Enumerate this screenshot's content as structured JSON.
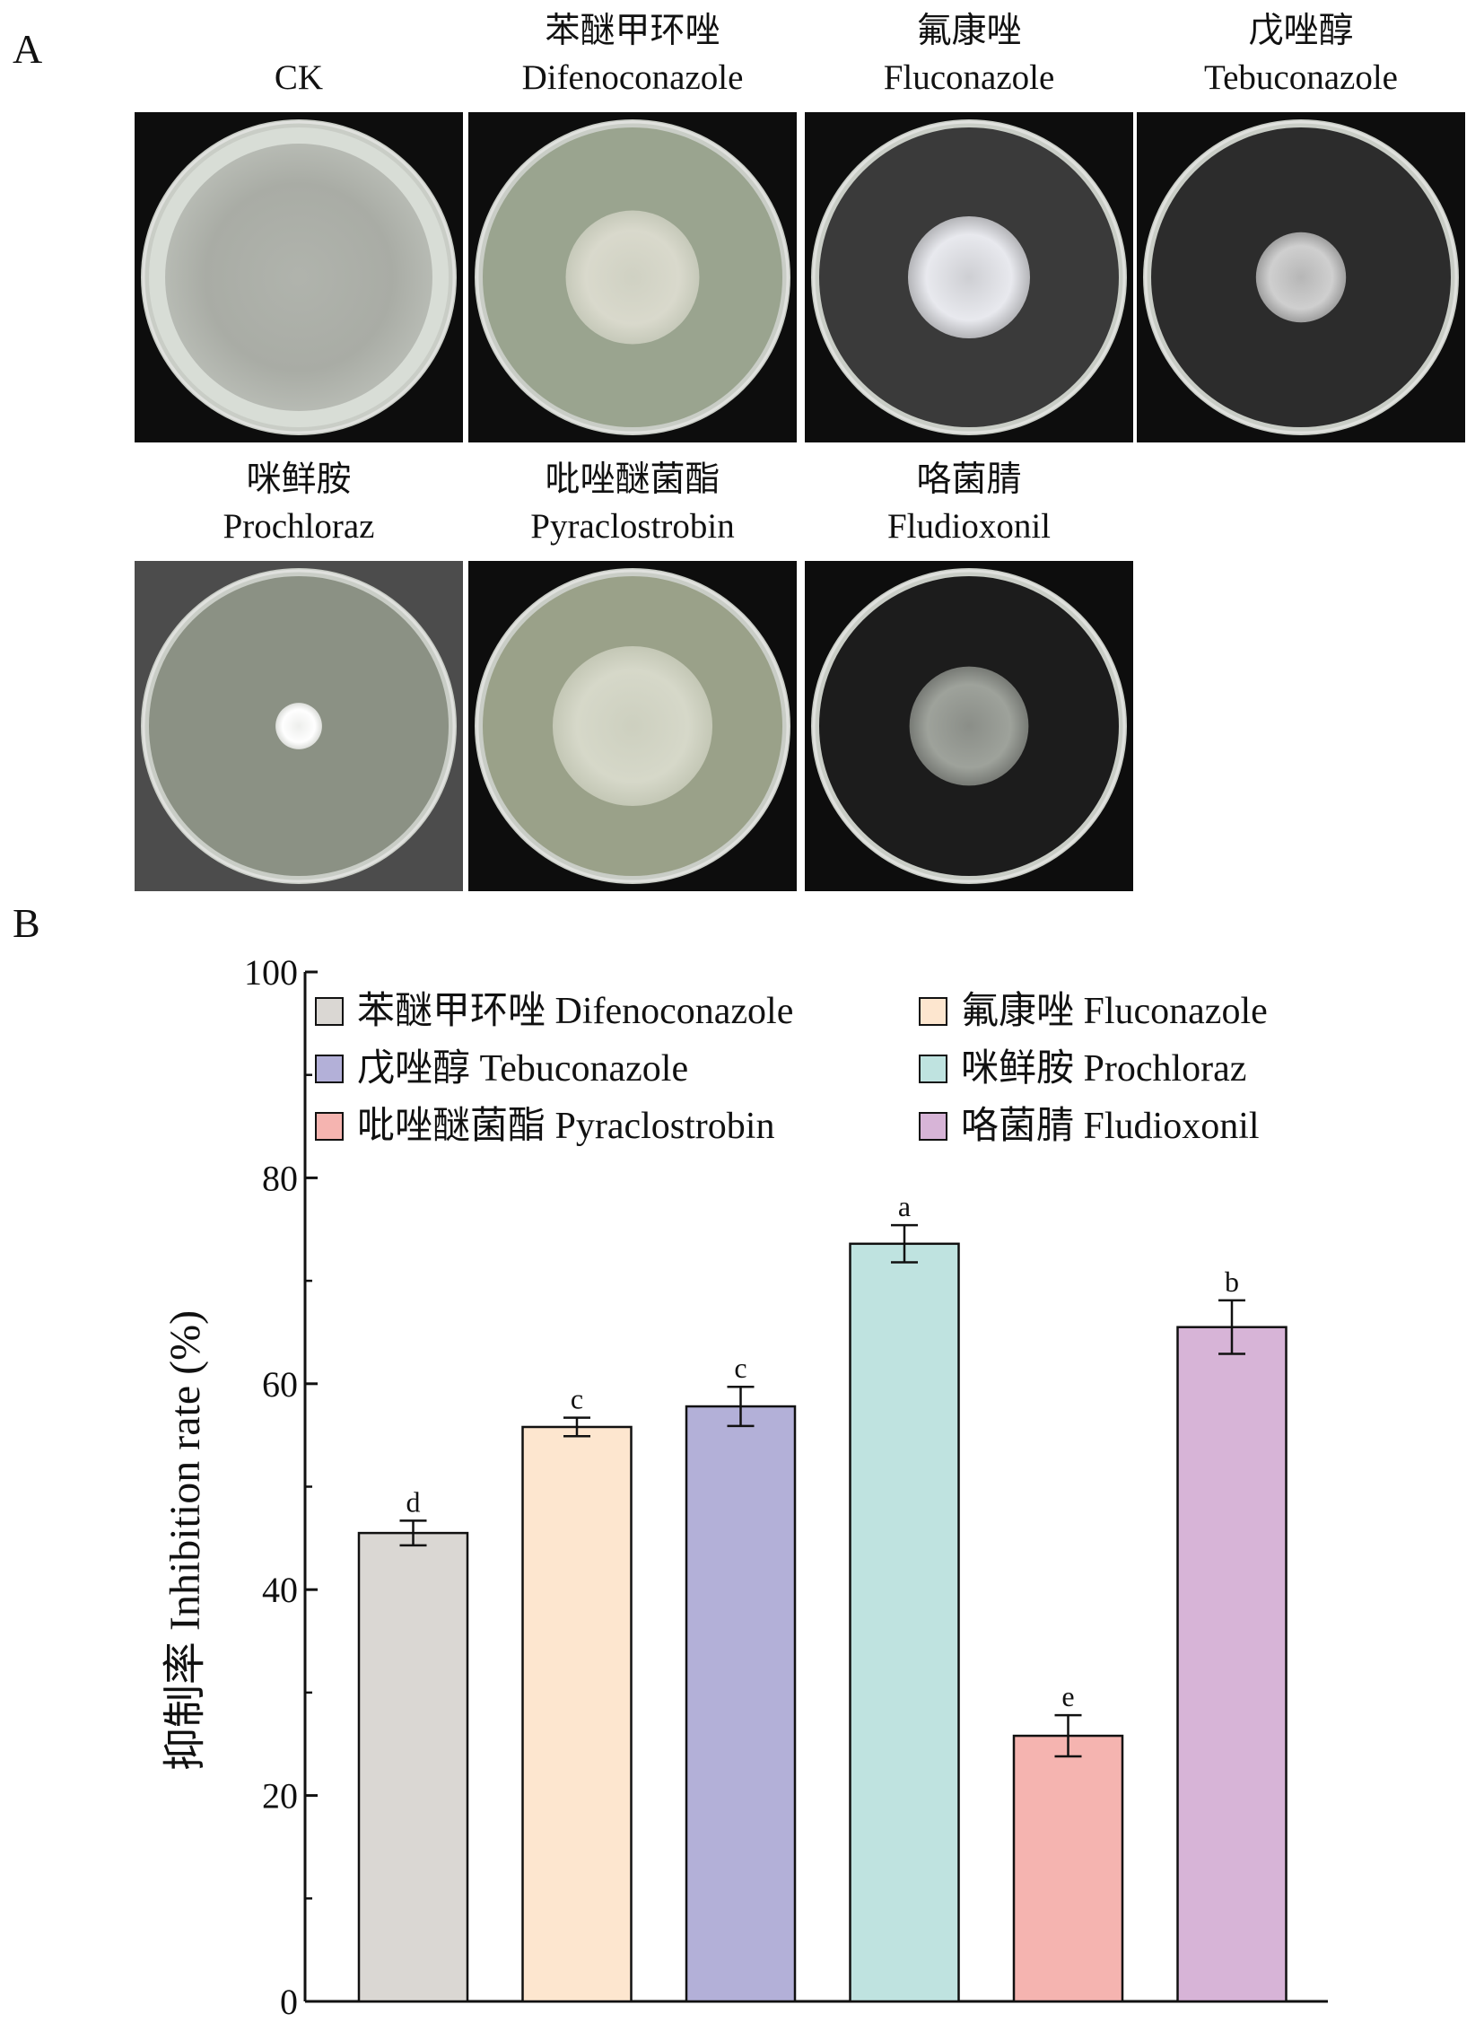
{
  "panel_a": {
    "letter": "A",
    "dishes": [
      {
        "cn": "",
        "en": "CK",
        "colony": 0.92,
        "bg": "dark",
        "colony_color": "#a9aca5",
        "plate_color": "#d8ddd6"
      },
      {
        "cn": "苯醚甲环唑",
        "en": "Difenoconazole",
        "colony": 0.46,
        "bg": "dark",
        "colony_color": "#d9d9cc",
        "plate_color": "#9aa48f"
      },
      {
        "cn": "氟康唑",
        "en": "Fluconazole",
        "colony": 0.42,
        "bg": "dark",
        "colony_color": "#e8e9ee",
        "plate_color": "#3a3a3a"
      },
      {
        "cn": "戊唑醇",
        "en": "Tebuconazole",
        "colony": 0.31,
        "bg": "dark",
        "colony_color": "#cfcfcf",
        "plate_color": "#2c2c2c"
      },
      {
        "cn": "咪鲜胺",
        "en": "Prochloraz",
        "colony": 0.16,
        "bg": "grey",
        "colony_color": "#ffffff",
        "plate_color": "#8b9184"
      },
      {
        "cn": "吡唑醚菌酯",
        "en": "Pyraclostrobin",
        "colony": 0.55,
        "bg": "dark",
        "colony_color": "#d6d8c9",
        "plate_color": "#9aa189"
      },
      {
        "cn": "咯菌腈",
        "en": "Fludioxonil",
        "colony": 0.41,
        "bg": "dark",
        "colony_color": "#9ea29b",
        "plate_color": "#1c1c1c"
      }
    ]
  },
  "panel_b": {
    "letter": "B"
  },
  "chart_data": {
    "type": "bar",
    "ylabel": "抑制率 Inhibition rate (%)",
    "ylim": [
      0,
      100
    ],
    "yticks": [
      0,
      20,
      40,
      60,
      80,
      100
    ],
    "categories": [
      "苯醚甲环唑 Difenoconazole",
      "氟康唑 Fluconazole",
      "戊唑醇 Tebuconazole",
      "咪鲜胺 Prochloraz",
      "吡唑醚菌酯 Pyraclostrobin",
      "咯菌腈 Fludioxonil"
    ],
    "values": [
      45.5,
      55.8,
      57.8,
      73.6,
      25.8,
      65.5
    ],
    "errors": [
      1.2,
      0.9,
      1.9,
      1.8,
      2.0,
      2.6
    ],
    "significance": [
      "d",
      "c",
      "c",
      "a",
      "e",
      "b"
    ],
    "colors": [
      "#dad7d3",
      "#fde6cf",
      "#b3b0d8",
      "#bfe3e0",
      "#f5b4b0",
      "#d7b4d7"
    ],
    "legend": {
      "placement": "top",
      "columns": 2,
      "entries": [
        "苯醚甲环唑 Difenoconazole",
        "氟康唑 Fluconazole",
        "戊唑醇 Tebuconazole",
        "咪鲜胺 Prochloraz",
        "吡唑醚菌酯 Pyraclostrobin",
        "咯菌腈 Fludioxonil"
      ]
    }
  }
}
